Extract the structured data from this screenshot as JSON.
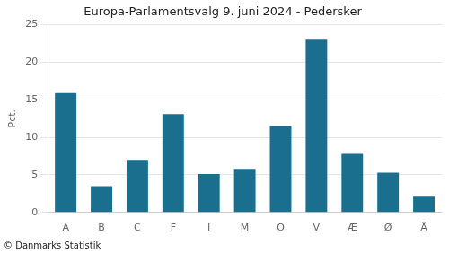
{
  "chart_data": {
    "type": "bar",
    "title": "Europa-Parlamentsvalg 9. juni 2024 - Pedersker",
    "categories": [
      "A",
      "B",
      "C",
      "F",
      "I",
      "M",
      "O",
      "V",
      "Æ",
      "Ø",
      "Å"
    ],
    "values": [
      15.9,
      3.5,
      7.0,
      13.1,
      5.1,
      5.8,
      11.5,
      23.0,
      7.8,
      5.3,
      2.1
    ],
    "color": "#1a6e8e",
    "ylabel": "Pct.",
    "annotations": [
      "© Danmarks Statistik"
    ],
    "ylim": [
      0,
      25
    ],
    "yticks": [
      0,
      5,
      10,
      15,
      20,
      25
    ],
    "grid": true
  }
}
